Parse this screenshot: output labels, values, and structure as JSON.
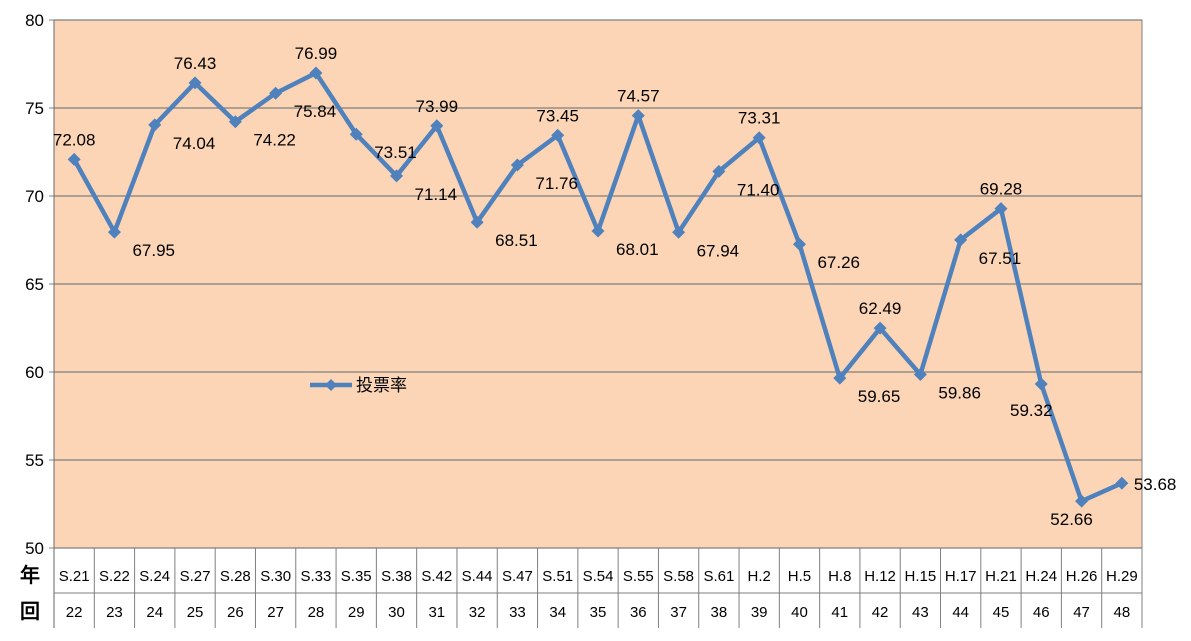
{
  "chart_data": {
    "type": "line",
    "title": "",
    "xlabel": "",
    "ylabel": "",
    "ylim": [
      50,
      80
    ],
    "yticks": [
      50,
      55,
      60,
      65,
      70,
      75,
      80
    ],
    "grid": true,
    "legend_position": "middle-left",
    "row_headers": [
      "年",
      "回"
    ],
    "categories": [
      "S.21",
      "S.22",
      "S.24",
      "S.27",
      "S.28",
      "S.30",
      "S.33",
      "S.35",
      "S.38",
      "S.42",
      "S.44",
      "S.47",
      "S.51",
      "S.54",
      "S.55",
      "S.58",
      "S.61",
      "H.2",
      "H.5",
      "H.8",
      "H.12",
      "H.15",
      "H.17",
      "H.21",
      "H.24",
      "H.26",
      "H.29"
    ],
    "sessions": [
      "22",
      "23",
      "24",
      "25",
      "26",
      "27",
      "28",
      "29",
      "30",
      "31",
      "32",
      "33",
      "34",
      "35",
      "36",
      "37",
      "38",
      "39",
      "40",
      "41",
      "42",
      "43",
      "44",
      "45",
      "46",
      "47",
      "48"
    ],
    "series": [
      {
        "name": "投票率",
        "values": [
          72.08,
          67.95,
          74.04,
          76.43,
          74.22,
          75.84,
          76.99,
          73.51,
          71.14,
          73.99,
          68.51,
          71.76,
          73.45,
          68.01,
          74.57,
          67.94,
          71.4,
          73.31,
          67.26,
          59.65,
          62.49,
          59.86,
          67.51,
          69.28,
          59.32,
          52.66,
          53.68
        ],
        "labels": [
          "72.08",
          "67.95",
          "74.04",
          "76.43",
          "74.22",
          "75.84",
          "76.99",
          "73.51",
          "71.14",
          "73.99",
          "68.51",
          "71.76",
          "73.45",
          "68.01",
          "74.57",
          "67.94",
          "71.40",
          "73.31",
          "67.26",
          "59.65",
          "62.49",
          "59.86",
          "67.51",
          "69.28",
          "59.32",
          "52.66",
          "53.68"
        ]
      }
    ],
    "colors": {
      "plot_background": "#FBD5B5",
      "line": "#4F81BD",
      "gridline": "#7F7F7F",
      "axis": "#7F7F7F"
    }
  }
}
